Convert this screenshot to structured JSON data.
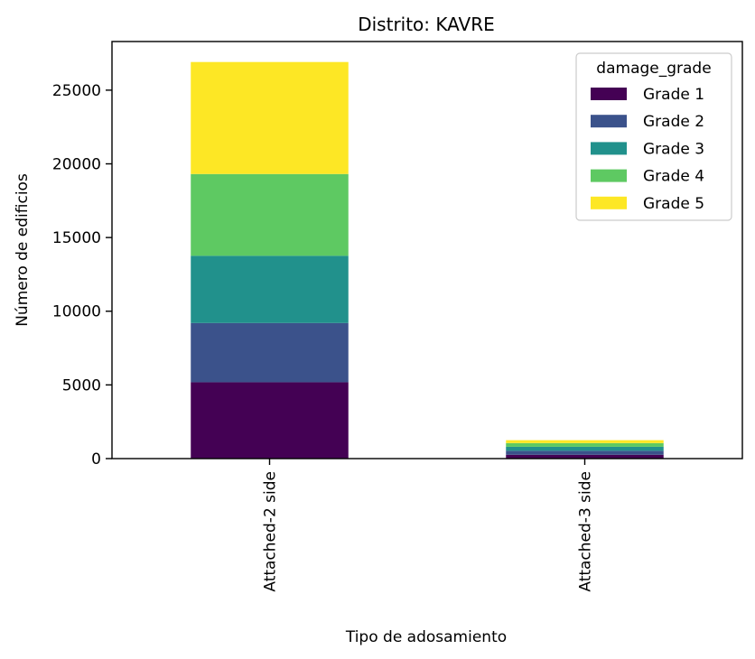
{
  "chart_data": {
    "type": "bar",
    "stacked": true,
    "title": "Distrito: KAVRE",
    "xlabel": "Tipo de adosamiento",
    "ylabel": "Número de edificios",
    "categories": [
      "Attached-2 side",
      "Attached-3 side"
    ],
    "series": [
      {
        "name": "Grade 1",
        "values": [
          5180,
          260
        ],
        "color": "#440154"
      },
      {
        "name": "Grade 2",
        "values": [
          4020,
          270
        ],
        "color": "#3b528b"
      },
      {
        "name": "Grade 3",
        "values": [
          4560,
          270
        ],
        "color": "#21918c"
      },
      {
        "name": "Grade 4",
        "values": [
          5550,
          250
        ],
        "color": "#5ec962"
      },
      {
        "name": "Grade 5",
        "values": [
          7600,
          200
        ],
        "color": "#fde725"
      }
    ],
    "ylim": [
      0,
      28300
    ],
    "yticks": [
      0,
      5000,
      10000,
      15000,
      20000,
      25000
    ],
    "ytick_labels": [
      "0",
      "5000",
      "10000",
      "15000",
      "20000",
      "25000"
    ],
    "legend_title": "damage_grade",
    "legend_position": "top-right",
    "grid": false
  }
}
